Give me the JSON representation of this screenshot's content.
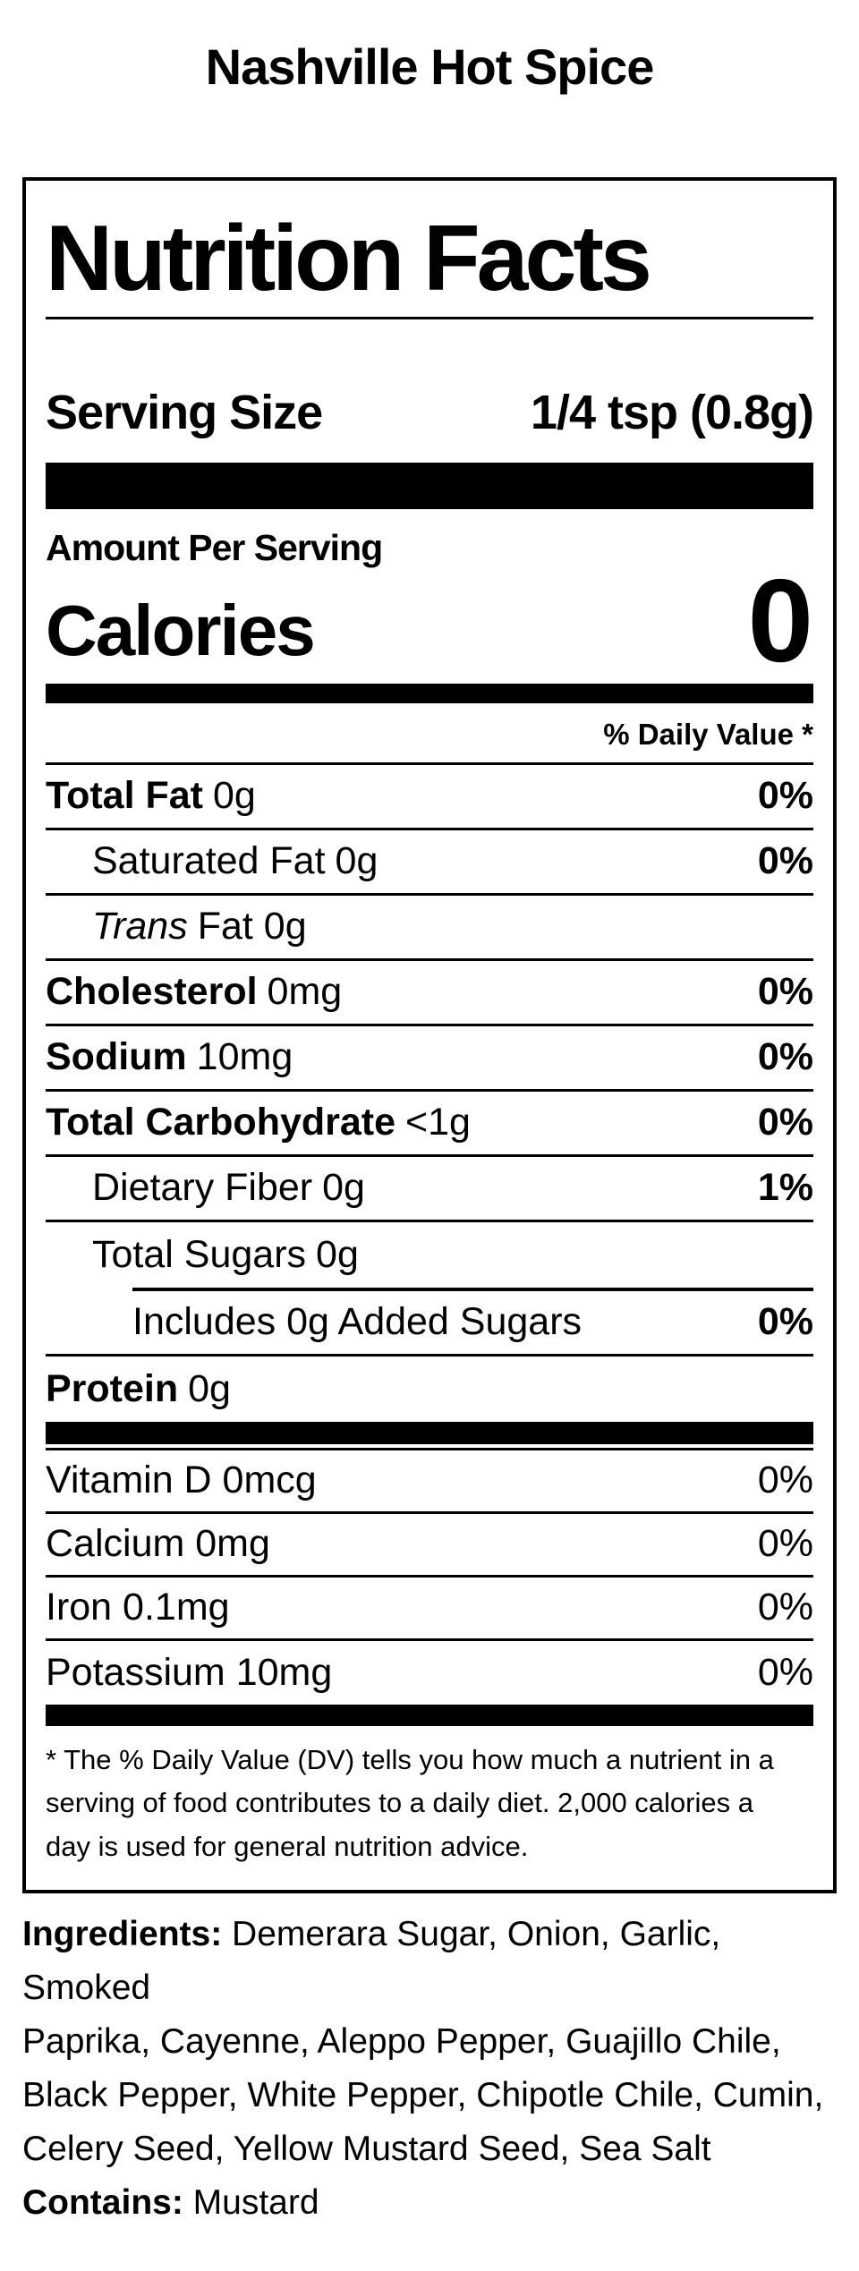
{
  "page": {
    "title": "Nashville Hot Spice"
  },
  "label": {
    "heading": "Nutrition Facts",
    "serving": {
      "label": "Serving Size",
      "value": "1/4 tsp (0.8g)"
    },
    "amount_per_serving": "Amount Per Serving",
    "calories": {
      "label": "Calories",
      "value": "0"
    },
    "daily_value_header": "% Daily Value *",
    "rows": [
      {
        "name": "Total Fat",
        "amount": "0g",
        "dv": "0%"
      },
      {
        "name": "Saturated Fat",
        "amount": "0g",
        "dv": "0%"
      },
      {
        "name": "Trans",
        "amount": "Fat 0g",
        "dv": ""
      },
      {
        "name": "Cholesterol",
        "amount": "0mg",
        "dv": "0%"
      },
      {
        "name": "Sodium",
        "amount": "10mg",
        "dv": "0%"
      },
      {
        "name": "Total Carbohydrate",
        "amount": "<1g",
        "dv": "0%"
      },
      {
        "name": "Dietary Fiber",
        "amount": "0g",
        "dv": "1%"
      },
      {
        "name": "Total Sugars",
        "amount": "0g",
        "dv": ""
      },
      {
        "name": "Includes 0g Added Sugars",
        "amount": "",
        "dv": "0%"
      },
      {
        "name": "Protein",
        "amount": "0g",
        "dv": ""
      }
    ],
    "vitamins": [
      {
        "name": "Vitamin D 0mcg",
        "dv": "0%"
      },
      {
        "name": "Calcium 0mg",
        "dv": "0%"
      },
      {
        "name": "Iron 0.1mg",
        "dv": "0%"
      },
      {
        "name": "Potassium 10mg",
        "dv": "0%"
      }
    ],
    "footnote_lines": [
      "* The % Daily Value (DV) tells you how much a nutrient in a",
      "serving of food contributes to a daily diet. 2,000 calories a",
      "day is used for general nutrition advice."
    ]
  },
  "ingredients": {
    "label": "Ingredients:",
    "lines": [
      "Demerara Sugar, Onion, Garlic, Smoked",
      "Paprika, Cayenne, Aleppo Pepper, Guajillo Chile,",
      "Black Pepper, White Pepper, Chipotle Chile, Cumin,",
      "Celery Seed, Yellow Mustard Seed, Sea Salt"
    ],
    "contains_label": "Contains:",
    "contains_value": "Mustard"
  },
  "colors": {
    "foreground": "#000000",
    "background": "#ffffff"
  }
}
